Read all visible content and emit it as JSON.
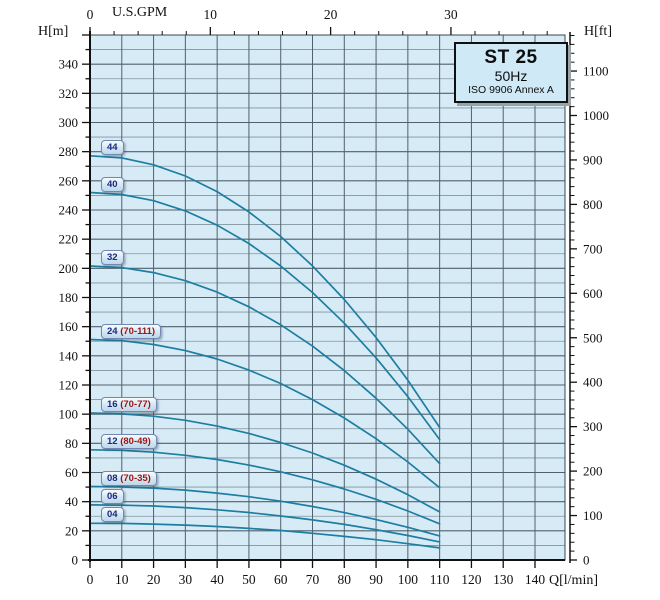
{
  "title_box": {
    "model": "ST 25",
    "frequency": "50Hz",
    "standard": "ISO 9906 Annex A"
  },
  "axis_units": {
    "left": "H[m]",
    "right": "H[ft]",
    "top": "U.S.GPM",
    "bottom": "Q[l/min]"
  },
  "chart_data": {
    "type": "line",
    "title": "ST 25 50Hz pump performance curves (ISO 9906 Annex A)",
    "xlabel": "Q[l/min]",
    "ylabel": "H[m]",
    "xlim": [
      0,
      149
    ],
    "ylim": [
      0,
      360
    ],
    "grid": "on",
    "x_major_ticks": [
      0,
      10,
      20,
      30,
      40,
      50,
      60,
      70,
      80,
      90,
      100,
      110,
      120,
      130,
      140
    ],
    "y_major_tick_labels": [
      0,
      20,
      40,
      60,
      80,
      100,
      120,
      140,
      160,
      180,
      200,
      220,
      240,
      260,
      280,
      300,
      320,
      340
    ],
    "y_major_step": 20,
    "y_minor_step": 10,
    "top_gpm_axis": {
      "label": "U.S.GPM",
      "major_ticks": [
        0,
        10,
        20,
        30
      ],
      "minor_step": 2,
      "lpm_per_gpm": 3.785
    },
    "right_ft_axis": {
      "label": "H[ft]",
      "major_ticks": [
        0,
        100,
        200,
        300,
        400,
        500,
        600,
        700,
        800,
        900,
        1000,
        1100
      ],
      "minor_step": 20,
      "m_per_ft": 0.3048
    },
    "x": [
      0,
      10,
      20,
      30,
      40,
      50,
      60,
      70,
      80,
      90,
      100,
      110
    ],
    "series": [
      {
        "name": "44",
        "range": "",
        "values": [
          277.2,
          275.7,
          271.0,
          263.3,
          252.6,
          238.7,
          221.8,
          201.7,
          178.6,
          152.5,
          123.2,
          90.9
        ]
      },
      {
        "name": "40",
        "range": "",
        "values": [
          252.0,
          250.6,
          246.4,
          239.4,
          229.6,
          217.0,
          201.6,
          183.4,
          162.4,
          138.6,
          112.0,
          82.6
        ]
      },
      {
        "name": "32",
        "range": "",
        "values": [
          201.6,
          200.5,
          197.1,
          191.5,
          183.7,
          173.6,
          161.3,
          146.7,
          129.9,
          110.9,
          89.6,
          66.1
        ]
      },
      {
        "name": "24",
        "range": "(70-111)",
        "values": [
          151.2,
          150.4,
          147.8,
          143.6,
          137.8,
          130.2,
          121.0,
          110.0,
          97.4,
          83.2,
          67.2,
          49.6
        ]
      },
      {
        "name": "16",
        "range": "(70-77)",
        "values": [
          100.8,
          100.2,
          98.6,
          95.8,
          91.8,
          86.8,
          80.6,
          73.4,
          65.0,
          55.4,
          44.8,
          33.0
        ]
      },
      {
        "name": "12",
        "range": "(80-49)",
        "values": [
          75.6,
          75.2,
          73.9,
          71.8,
          68.9,
          65.1,
          60.5,
          55.0,
          48.7,
          41.6,
          33.6,
          24.8
        ]
      },
      {
        "name": "08",
        "range": "(70-35)",
        "values": [
          50.4,
          50.1,
          49.3,
          47.9,
          45.9,
          43.4,
          40.3,
          36.7,
          32.5,
          27.7,
          22.4,
          16.5
        ]
      },
      {
        "name": "06",
        "range": "",
        "values": [
          37.8,
          37.6,
          37.0,
          35.9,
          34.4,
          32.6,
          30.2,
          27.5,
          24.4,
          20.8,
          16.8,
          12.4
        ]
      },
      {
        "name": "04",
        "range": "",
        "values": [
          25.2,
          25.1,
          24.6,
          23.9,
          23.0,
          21.7,
          20.2,
          18.3,
          16.2,
          13.9,
          11.2,
          8.3
        ]
      }
    ]
  },
  "colors": {
    "plot_bg": "#d7ebf7",
    "grid_major": "#4f616b",
    "grid_minor": "#81949e",
    "curve": "#1d7ea1",
    "axis": "#111111",
    "border": "#37474f",
    "tick_text": "#111111"
  }
}
